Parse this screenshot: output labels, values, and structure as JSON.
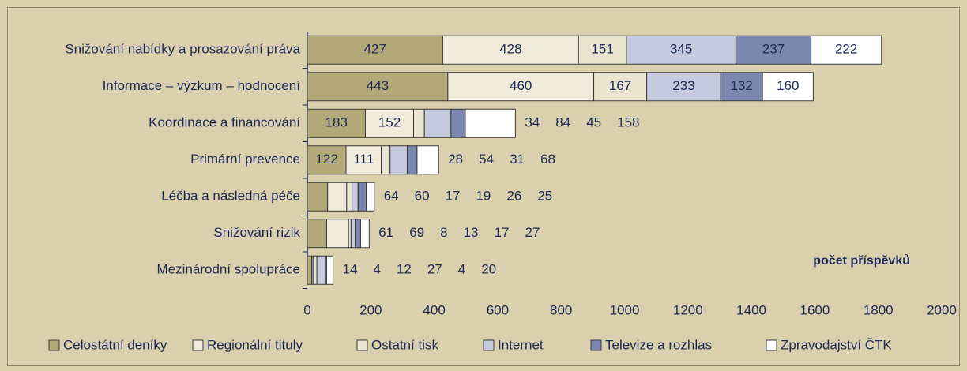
{
  "chart_data": {
    "type": "stacked-barh",
    "annotation": "počet příspěvků",
    "categories": [
      "Snižování nabídky a prosazování práva",
      "Informace – výzkum – hodnocení",
      "Koordinace a financování",
      "Primární prevence",
      "Léčba a následná péče",
      "Snižování rizik",
      "Mezinárodní spolupráce"
    ],
    "series": [
      {
        "name": "Celostátní deníky",
        "color": "#b3a878",
        "values": [
          427,
          443,
          183,
          122,
          64,
          61,
          14
        ]
      },
      {
        "name": "Regionální tituly",
        "color": "#f0ebdb",
        "values": [
          428,
          460,
          152,
          111,
          60,
          69,
          4
        ]
      },
      {
        "name": "Ostatní tisk",
        "color": "#e9e4cf",
        "values": [
          151,
          167,
          34,
          28,
          17,
          8,
          12
        ]
      },
      {
        "name": "Internet",
        "color": "#c6cade",
        "values": [
          345,
          233,
          84,
          54,
          19,
          13,
          27
        ]
      },
      {
        "name": "Televize a rozhlas",
        "color": "#7b87ae",
        "values": [
          237,
          132,
          45,
          31,
          26,
          17,
          4
        ]
      },
      {
        "name": "Zpravodajství ČTK",
        "color": "#ffffff",
        "values": [
          222,
          160,
          158,
          68,
          25,
          27,
          20
        ]
      }
    ],
    "xlim": [
      0,
      2000
    ],
    "xticks": [
      0,
      200,
      400,
      600,
      800,
      1000,
      1200,
      1400,
      1600,
      1800,
      2000
    ],
    "legend": "bottom"
  }
}
